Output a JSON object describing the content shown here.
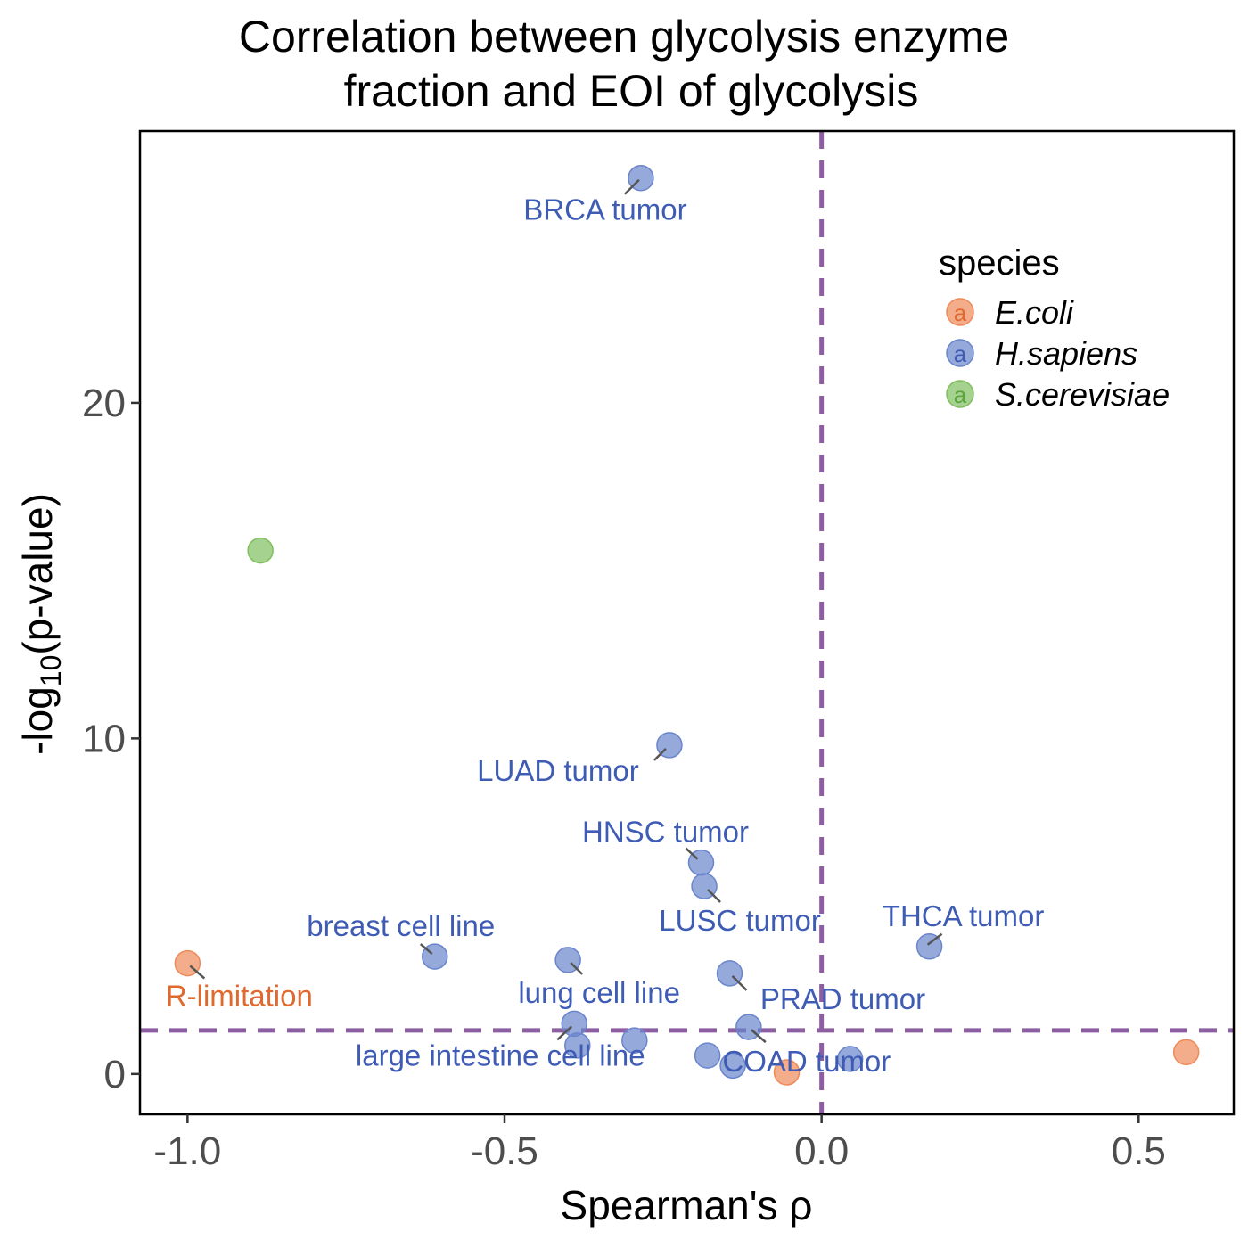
{
  "chart_data": {
    "type": "scatter",
    "title_lines": [
      "Correlation between glycolysis enzyme",
      "fraction and EOI of glycolysis"
    ],
    "xlabel": "Spearman's  ρ",
    "ylabel_parts": {
      "before": "-log",
      "sub": "10",
      "after": "(p-value)"
    },
    "xlim": [
      -1.075,
      0.65
    ],
    "ylim": [
      -1.2,
      28.1
    ],
    "x_ticks": [
      -1.0,
      -0.5,
      0.0,
      0.5
    ],
    "x_tick_labels": [
      "-1.0",
      "-0.5",
      "0.0",
      "0.5"
    ],
    "y_ticks": [
      0,
      10,
      20
    ],
    "y_tick_labels": [
      "0",
      "10",
      "20"
    ],
    "reference_lines": {
      "vertical_x": 0.0,
      "horizontal_y": 1.3,
      "color": "#8e5ea2",
      "style": "dashed"
    },
    "legend": {
      "title": "species",
      "placement": "top-right",
      "key_glyph": "a",
      "items": [
        {
          "species": "E.coli",
          "label": "E.coli",
          "color": "#ee8a5a",
          "text_color": "#e0692f"
        },
        {
          "species": "H.sapiens",
          "label": "H.sapiens",
          "color": "#6a85cc",
          "text_color": "#3f5cb5"
        },
        {
          "species": "S.cerevisiae",
          "label": "S.cerevisiae",
          "color": "#7fbf5e",
          "text_color": "#5aa63a"
        }
      ]
    },
    "points": [
      {
        "x": -0.285,
        "y": 26.7,
        "species": "H.sapiens",
        "label": "BRCA tumor"
      },
      {
        "x": -0.885,
        "y": 15.6,
        "species": "S.cerevisiae",
        "label": ""
      },
      {
        "x": -0.24,
        "y": 9.8,
        "species": "H.sapiens",
        "label": "LUAD tumor"
      },
      {
        "x": -0.19,
        "y": 6.3,
        "species": "H.sapiens",
        "label": "HNSC tumor"
      },
      {
        "x": -0.185,
        "y": 5.6,
        "species": "H.sapiens",
        "label": "LUSC tumor"
      },
      {
        "x": 0.17,
        "y": 3.8,
        "species": "H.sapiens",
        "label": "THCA tumor"
      },
      {
        "x": -0.61,
        "y": 3.5,
        "species": "H.sapiens",
        "label": "breast cell line"
      },
      {
        "x": -1.0,
        "y": 3.3,
        "species": "E.coli",
        "label": "R-limitation"
      },
      {
        "x": -0.4,
        "y": 3.4,
        "species": "H.sapiens",
        "label": "lung cell line"
      },
      {
        "x": -0.145,
        "y": 3.0,
        "species": "H.sapiens",
        "label": "PRAD tumor"
      },
      {
        "x": -0.39,
        "y": 1.5,
        "species": "H.sapiens",
        "label": "large intestine cell line"
      },
      {
        "x": -0.115,
        "y": 1.4,
        "species": "H.sapiens",
        "label": "COAD tumor"
      },
      {
        "x": -0.385,
        "y": 0.85,
        "species": "H.sapiens",
        "label": ""
      },
      {
        "x": -0.295,
        "y": 1.0,
        "species": "H.sapiens",
        "label": ""
      },
      {
        "x": -0.18,
        "y": 0.55,
        "species": "H.sapiens",
        "label": ""
      },
      {
        "x": -0.14,
        "y": 0.25,
        "species": "H.sapiens",
        "label": ""
      },
      {
        "x": 0.045,
        "y": 0.45,
        "species": "H.sapiens",
        "label": ""
      },
      {
        "x": -0.055,
        "y": 0.05,
        "species": "E.coli",
        "label": ""
      },
      {
        "x": 0.575,
        "y": 0.65,
        "species": "E.coli",
        "label": ""
      }
    ]
  }
}
